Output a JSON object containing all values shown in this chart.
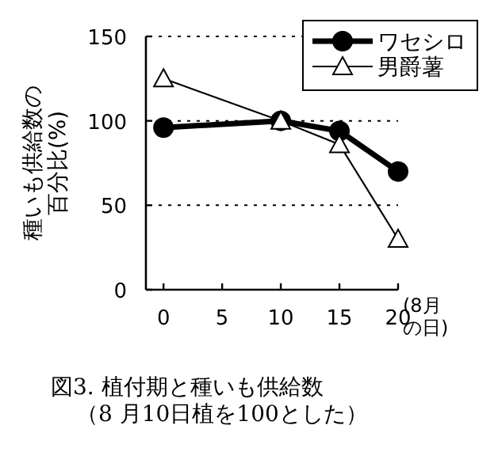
{
  "chart_data": {
    "type": "line",
    "title": "図3. 植付期と種いも供給数",
    "subtitle": "（8 月10日植を100とした）",
    "xlabel": "(8月の日)",
    "ylabel": "種いも供給数の百分比(%)",
    "x": [
      0,
      10,
      15,
      20
    ],
    "xlim": [
      -1.5,
      20
    ],
    "xticks": [
      0,
      5,
      10,
      15,
      20
    ],
    "ylim": [
      0,
      150
    ],
    "yticks": [
      0,
      50,
      100,
      150
    ],
    "grid": "y",
    "legend": "top right",
    "line_style": "solid",
    "series": [
      {
        "name": "ワセシロ",
        "color": "#000000",
        "marker": "circle",
        "values": [
          96,
          100,
          94,
          70
        ]
      },
      {
        "name": "男爵薯",
        "color": "#000000",
        "marker": "triangle",
        "values": [
          125,
          100,
          86,
          30
        ]
      }
    ]
  }
}
